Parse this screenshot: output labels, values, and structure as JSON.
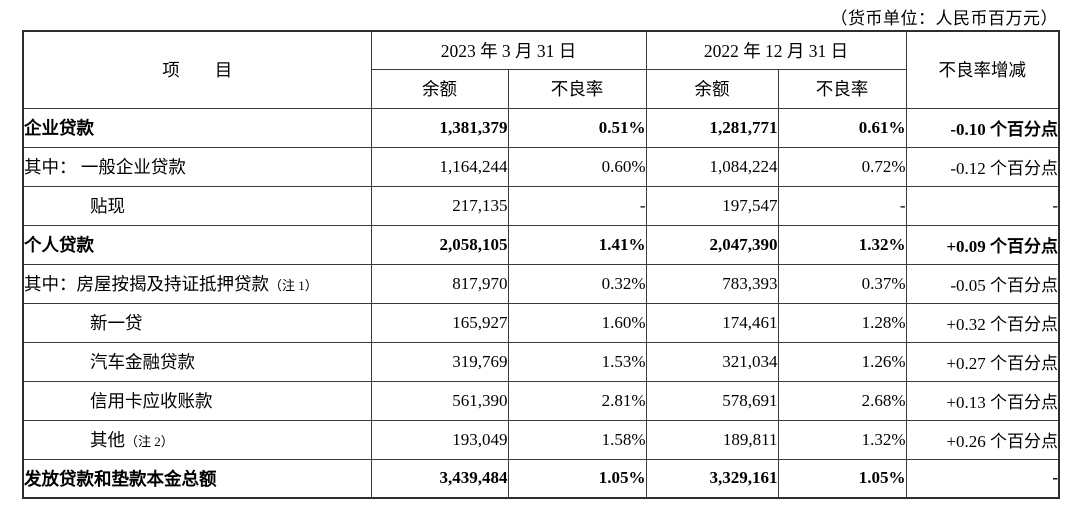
{
  "caption": "（货币单位：人民币百万元）",
  "table": {
    "headers": {
      "item": "项　　目",
      "col_2023": "2023 年 3 月 31 日",
      "col_2022": "2022 年 12 月 31 日",
      "balance": "余额",
      "npl": "不良率",
      "change": "不良率增减"
    },
    "rows": [
      {
        "item": "企业贷款",
        "note": "",
        "indent": 0,
        "bold": true,
        "b2023": "1,381,379",
        "r2023": "0.51%",
        "b2022": "1,281,771",
        "r2022": "0.61%",
        "change": "-0.10 个百分点"
      },
      {
        "item": "其中： 一般企业贷款",
        "note": "",
        "indent": 0,
        "bold": false,
        "b2023": "1,164,244",
        "r2023": "0.60%",
        "b2022": "1,084,224",
        "r2022": "0.72%",
        "change": "-0.12 个百分点"
      },
      {
        "item": "贴现",
        "note": "",
        "indent": 1,
        "bold": false,
        "b2023": "217,135",
        "r2023": "-",
        "b2022": "197,547",
        "r2022": "-",
        "change": "-"
      },
      {
        "item": "个人贷款",
        "note": "",
        "indent": 0,
        "bold": true,
        "b2023": "2,058,105",
        "r2023": "1.41%",
        "b2022": "2,047,390",
        "r2022": "1.32%",
        "change": "+0.09 个百分点"
      },
      {
        "item": "其中：房屋按揭及持证抵押贷款",
        "note": "（注 1）",
        "indent": 0,
        "bold": false,
        "b2023": "817,970",
        "r2023": "0.32%",
        "b2022": "783,393",
        "r2022": "0.37%",
        "change": "-0.05 个百分点"
      },
      {
        "item": "新一贷",
        "note": "",
        "indent": 1,
        "bold": false,
        "b2023": "165,927",
        "r2023": "1.60%",
        "b2022": "174,461",
        "r2022": "1.28%",
        "change": "+0.32 个百分点"
      },
      {
        "item": "汽车金融贷款",
        "note": "",
        "indent": 1,
        "bold": false,
        "b2023": "319,769",
        "r2023": "1.53%",
        "b2022": "321,034",
        "r2022": "1.26%",
        "change": "+0.27 个百分点"
      },
      {
        "item": "信用卡应收账款",
        "note": "",
        "indent": 1,
        "bold": false,
        "b2023": "561,390",
        "r2023": "2.81%",
        "b2022": "578,691",
        "r2022": "2.68%",
        "change": "+0.13 个百分点"
      },
      {
        "item": "其他",
        "note": "（注 2）",
        "indent": 1,
        "bold": false,
        "b2023": "193,049",
        "r2023": "1.58%",
        "b2022": "189,811",
        "r2022": "1.32%",
        "change": "+0.26 个百分点"
      },
      {
        "item": "发放贷款和垫款本金总额",
        "note": "",
        "indent": 0,
        "bold": true,
        "b2023": "3,439,484",
        "r2023": "1.05%",
        "b2022": "3,329,161",
        "r2022": "1.05%",
        "change": "-"
      }
    ]
  }
}
